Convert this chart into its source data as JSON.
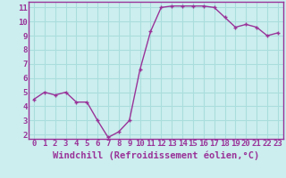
{
  "x": [
    0,
    1,
    2,
    3,
    4,
    5,
    6,
    7,
    8,
    9,
    10,
    11,
    12,
    13,
    14,
    15,
    16,
    17,
    18,
    19,
    20,
    21,
    22,
    23
  ],
  "y": [
    4.5,
    5.0,
    4.8,
    5.0,
    4.3,
    4.3,
    3.0,
    1.8,
    2.2,
    3.0,
    6.6,
    9.3,
    11.0,
    11.1,
    11.1,
    11.1,
    11.1,
    11.0,
    10.3,
    9.6,
    9.8,
    9.6,
    9.0,
    9.2
  ],
  "xlabel": "Windchill (Refroidissement éolien,°C)",
  "ylabel": "",
  "title": "",
  "ylim": [
    1.7,
    11.4
  ],
  "xlim": [
    -0.5,
    23.5
  ],
  "yticks": [
    2,
    3,
    4,
    5,
    6,
    7,
    8,
    9,
    10,
    11
  ],
  "xticks": [
    0,
    1,
    2,
    3,
    4,
    5,
    6,
    7,
    8,
    9,
    10,
    11,
    12,
    13,
    14,
    15,
    16,
    17,
    18,
    19,
    20,
    21,
    22,
    23
  ],
  "line_color": "#993399",
  "marker_color": "#993399",
  "bg_color": "#cceeee",
  "grid_color": "#aadddd",
  "axis_color": "#993399",
  "label_color": "#993399",
  "tick_color": "#993399",
  "font_size": 6.5,
  "label_font_size": 7.5
}
